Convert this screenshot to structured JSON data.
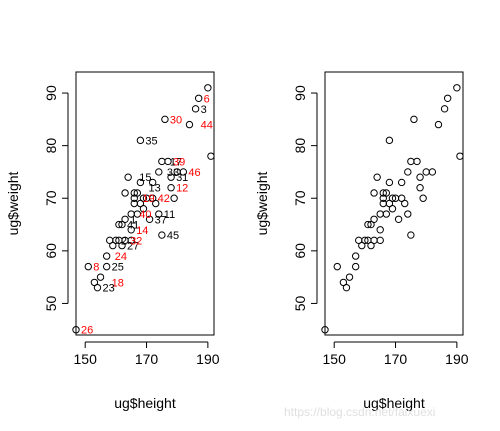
{
  "chart_data": [
    {
      "type": "scatter",
      "title": "",
      "xlabel": "ug$height",
      "ylabel": "ug$weight",
      "xlim": [
        147,
        192
      ],
      "ylim": [
        44,
        94
      ],
      "xticks": [
        150,
        170,
        190
      ],
      "yticks": [
        50,
        60,
        70,
        80,
        90
      ],
      "grid": false,
      "point_symbol": "open-circle",
      "points": [
        {
          "x": 147,
          "y": 45
        },
        {
          "x": 151,
          "y": 57
        },
        {
          "x": 153,
          "y": 54
        },
        {
          "x": 154,
          "y": 53
        },
        {
          "x": 155,
          "y": 55
        },
        {
          "x": 157,
          "y": 59
        },
        {
          "x": 157,
          "y": 57
        },
        {
          "x": 158,
          "y": 62
        },
        {
          "x": 159,
          "y": 61
        },
        {
          "x": 160,
          "y": 62
        },
        {
          "x": 161,
          "y": 62
        },
        {
          "x": 161,
          "y": 65
        },
        {
          "x": 162,
          "y": 65
        },
        {
          "x": 162,
          "y": 61
        },
        {
          "x": 163,
          "y": 62
        },
        {
          "x": 163,
          "y": 66
        },
        {
          "x": 163,
          "y": 71
        },
        {
          "x": 164,
          "y": 74
        },
        {
          "x": 165,
          "y": 67
        },
        {
          "x": 165,
          "y": 64
        },
        {
          "x": 165,
          "y": 62
        },
        {
          "x": 166,
          "y": 69
        },
        {
          "x": 166,
          "y": 70
        },
        {
          "x": 166,
          "y": 71
        },
        {
          "x": 167,
          "y": 67
        },
        {
          "x": 167,
          "y": 71
        },
        {
          "x": 168,
          "y": 73
        },
        {
          "x": 168,
          "y": 81
        },
        {
          "x": 168,
          "y": 69
        },
        {
          "x": 169,
          "y": 70
        },
        {
          "x": 169,
          "y": 68
        },
        {
          "x": 170,
          "y": 70
        },
        {
          "x": 171,
          "y": 66
        },
        {
          "x": 172,
          "y": 70
        },
        {
          "x": 172,
          "y": 73
        },
        {
          "x": 173,
          "y": 69
        },
        {
          "x": 174,
          "y": 67
        },
        {
          "x": 174,
          "y": 75
        },
        {
          "x": 175,
          "y": 77
        },
        {
          "x": 175,
          "y": 63
        },
        {
          "x": 176,
          "y": 85
        },
        {
          "x": 177,
          "y": 77
        },
        {
          "x": 178,
          "y": 74
        },
        {
          "x": 178,
          "y": 72
        },
        {
          "x": 179,
          "y": 70
        },
        {
          "x": 180,
          "y": 75
        },
        {
          "x": 182,
          "y": 75
        },
        {
          "x": 184,
          "y": 84
        },
        {
          "x": 186,
          "y": 87
        },
        {
          "x": 187,
          "y": 89
        },
        {
          "x": 190,
          "y": 91
        },
        {
          "x": 191,
          "y": 78
        }
      ],
      "annotations": [
        {
          "text": "26",
          "x": 147,
          "y": 45,
          "color": "red"
        },
        {
          "text": "8",
          "x": 151,
          "y": 57,
          "color": "red"
        },
        {
          "text": "18",
          "x": 157,
          "y": 54,
          "color": "red"
        },
        {
          "text": "23",
          "x": 154,
          "y": 53,
          "color": "black"
        },
        {
          "text": "25",
          "x": 157,
          "y": 57,
          "color": "black"
        },
        {
          "text": "24",
          "x": 158,
          "y": 59,
          "color": "red"
        },
        {
          "text": "2",
          "x": 160,
          "y": 62,
          "color": "black"
        },
        {
          "text": "27",
          "x": 162,
          "y": 61,
          "color": "black"
        },
        {
          "text": "32",
          "x": 163,
          "y": 62,
          "color": "red"
        },
        {
          "text": "1",
          "x": 163,
          "y": 66,
          "color": "black"
        },
        {
          "text": "41",
          "x": 162,
          "y": 65,
          "color": "black"
        },
        {
          "text": "14",
          "x": 165,
          "y": 64,
          "color": "red"
        },
        {
          "text": "40",
          "x": 166,
          "y": 67,
          "color": "red"
        },
        {
          "text": "15",
          "x": 166,
          "y": 74,
          "color": "black"
        },
        {
          "text": "19",
          "x": 167,
          "y": 70,
          "color": "red"
        },
        {
          "text": "13",
          "x": 169,
          "y": 72,
          "color": "black"
        },
        {
          "text": "37",
          "x": 171,
          "y": 66,
          "color": "black"
        },
        {
          "text": "42",
          "x": 172,
          "y": 70,
          "color": "red"
        },
        {
          "text": "35",
          "x": 168,
          "y": 81,
          "color": "black"
        },
        {
          "text": "11",
          "x": 174,
          "y": 67,
          "color": "black"
        },
        {
          "text": "45",
          "x": 175,
          "y": 63,
          "color": "black"
        },
        {
          "text": "12",
          "x": 178,
          "y": 72,
          "color": "red"
        },
        {
          "text": "33",
          "x": 175,
          "y": 75,
          "color": "black"
        },
        {
          "text": "31",
          "x": 178,
          "y": 74,
          "color": "black"
        },
        {
          "text": "17",
          "x": 176,
          "y": 77,
          "color": "black"
        },
        {
          "text": "39",
          "x": 177,
          "y": 77,
          "color": "red"
        },
        {
          "text": "46",
          "x": 182,
          "y": 75,
          "color": "red"
        },
        {
          "text": "30",
          "x": 176,
          "y": 85,
          "color": "red"
        },
        {
          "text": "44",
          "x": 186,
          "y": 84,
          "color": "red"
        },
        {
          "text": "3",
          "x": 186,
          "y": 87,
          "color": "black"
        },
        {
          "text": "6",
          "x": 187,
          "y": 89,
          "color": "red"
        }
      ]
    },
    {
      "type": "scatter",
      "title": "",
      "xlabel": "ug$height",
      "ylabel": "ug$weight",
      "xlim": [
        147,
        192
      ],
      "ylim": [
        44,
        94
      ],
      "xticks": [
        150,
        170,
        190
      ],
      "yticks": [
        50,
        60,
        70,
        80,
        90
      ],
      "grid": false,
      "point_symbol": "open-circle",
      "points": [
        {
          "x": 147,
          "y": 45
        },
        {
          "x": 151,
          "y": 57
        },
        {
          "x": 153,
          "y": 54
        },
        {
          "x": 154,
          "y": 53
        },
        {
          "x": 155,
          "y": 55
        },
        {
          "x": 157,
          "y": 59
        },
        {
          "x": 157,
          "y": 57
        },
        {
          "x": 158,
          "y": 62
        },
        {
          "x": 159,
          "y": 61
        },
        {
          "x": 160,
          "y": 62
        },
        {
          "x": 161,
          "y": 62
        },
        {
          "x": 161,
          "y": 65
        },
        {
          "x": 162,
          "y": 65
        },
        {
          "x": 162,
          "y": 61
        },
        {
          "x": 163,
          "y": 62
        },
        {
          "x": 163,
          "y": 66
        },
        {
          "x": 163,
          "y": 71
        },
        {
          "x": 164,
          "y": 74
        },
        {
          "x": 165,
          "y": 67
        },
        {
          "x": 165,
          "y": 64
        },
        {
          "x": 165,
          "y": 62
        },
        {
          "x": 166,
          "y": 69
        },
        {
          "x": 166,
          "y": 70
        },
        {
          "x": 166,
          "y": 71
        },
        {
          "x": 167,
          "y": 67
        },
        {
          "x": 167,
          "y": 71
        },
        {
          "x": 168,
          "y": 73
        },
        {
          "x": 168,
          "y": 81
        },
        {
          "x": 168,
          "y": 69
        },
        {
          "x": 169,
          "y": 70
        },
        {
          "x": 169,
          "y": 68
        },
        {
          "x": 170,
          "y": 70
        },
        {
          "x": 171,
          "y": 66
        },
        {
          "x": 172,
          "y": 70
        },
        {
          "x": 172,
          "y": 73
        },
        {
          "x": 173,
          "y": 69
        },
        {
          "x": 174,
          "y": 67
        },
        {
          "x": 174,
          "y": 75
        },
        {
          "x": 175,
          "y": 77
        },
        {
          "x": 175,
          "y": 63
        },
        {
          "x": 176,
          "y": 85
        },
        {
          "x": 177,
          "y": 77
        },
        {
          "x": 178,
          "y": 74
        },
        {
          "x": 178,
          "y": 72
        },
        {
          "x": 179,
          "y": 70
        },
        {
          "x": 180,
          "y": 75
        },
        {
          "x": 182,
          "y": 75
        },
        {
          "x": 184,
          "y": 84
        },
        {
          "x": 186,
          "y": 87
        },
        {
          "x": 187,
          "y": 89
        },
        {
          "x": 190,
          "y": 91
        },
        {
          "x": 191,
          "y": 78
        }
      ]
    }
  ],
  "colors": {
    "label_red": "#ff0000",
    "label_black": "#000000",
    "axis": "#000000"
  },
  "watermark": {
    "text": "https://blog.csdn.net/faixuexi"
  }
}
